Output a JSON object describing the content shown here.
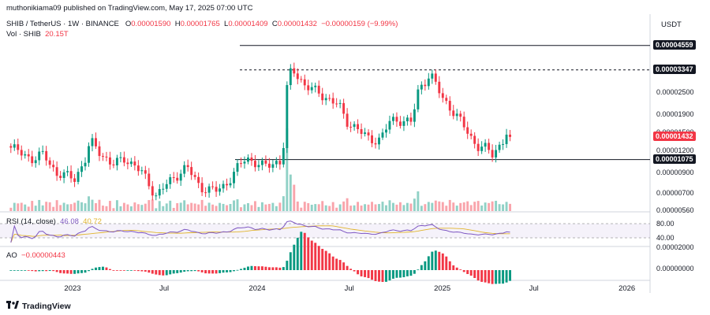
{
  "header": {
    "published": "muthonikiama09 published on TradingView.com, May 17, 2025 07:00 UTC",
    "symbol": "SHIB / TetherUS · 1W · BINANCE",
    "ohlc": {
      "o_label": "O",
      "o": "0.00001590",
      "h_label": "H",
      "h": "0.00001765",
      "l_label": "L",
      "l": "0.00001409",
      "c_label": "C",
      "c": "0.00001432",
      "change": "−0.00000159 (−9.99%)"
    },
    "volume_label": "Vol · SHIB",
    "volume_value": "20.15T",
    "currency": "USDT"
  },
  "rsi": {
    "label": "RSI (14, close)",
    "value1": "46.08",
    "value2": "40.72",
    "level_top": "80.00",
    "level_bottom": "40.00"
  },
  "ao": {
    "label": "AO",
    "value": "−0.00000443",
    "axis_top": "0.00002000",
    "axis_mid": "0.00000000"
  },
  "branding": {
    "logo_text": "TradingView"
  },
  "colors": {
    "up": "#089981",
    "down": "#f23645",
    "rsi": "#7e57c2",
    "rsi_ma": "#e0b42c"
  },
  "chart_data": {
    "type": "candlestick",
    "interval": "1W",
    "x_ticks": [
      "2023",
      "Jul",
      "2024",
      "Jul",
      "2025",
      "Jul",
      "2026"
    ],
    "y_ticks": [
      "0.00002500",
      "0.00001900",
      "0.00001500",
      "0.00001200",
      "0.00000900",
      "0.00000700",
      "0.00000560"
    ],
    "y_scale": "log",
    "price_tags": [
      {
        "value": "0.00004559",
        "style": "black"
      },
      {
        "value": "0.00003347",
        "style": "black"
      },
      {
        "value": "0.00001432",
        "style": "red"
      },
      {
        "value": "0.00001075",
        "style": "black"
      }
    ],
    "horizontal_levels": [
      {
        "value": 4.559e-05,
        "dashed": false
      },
      {
        "value": 3.347e-05,
        "dashed": true
      },
      {
        "value": 1.075e-05,
        "dashed": false
      }
    ],
    "anchors": [
      [
        "2022-09-01",
        1.25e-05
      ],
      [
        "2022-10-15",
        1.08e-05
      ],
      [
        "2022-11-05",
        1.15e-05
      ],
      [
        "2022-12-01",
        9e-06
      ],
      [
        "2023-01-05",
        8.5e-06
      ],
      [
        "2023-01-25",
        1.05e-05
      ],
      [
        "2023-02-05",
        1.35e-05
      ],
      [
        "2023-02-25",
        1.18e-05
      ],
      [
        "2023-03-20",
        1e-05
      ],
      [
        "2023-04-15",
        1.1e-05
      ],
      [
        "2023-05-20",
        9e-06
      ],
      [
        "2023-06-15",
        6.8e-06
      ],
      [
        "2023-07-05",
        7.8e-06
      ],
      [
        "2023-07-25",
        8.8e-06
      ],
      [
        "2023-08-15",
        9.8e-06
      ],
      [
        "2023-09-10",
        7.6e-06
      ],
      [
        "2023-10-10",
        7.2e-06
      ],
      [
        "2023-10-30",
        7.8e-06
      ],
      [
        "2023-11-25",
        9.8e-06
      ],
      [
        "2023-12-10",
        1.1e-05
      ],
      [
        "2024-01-15",
        9.8e-06
      ],
      [
        "2024-02-10",
        1.05e-05
      ],
      [
        "2024-02-20",
        1.05e-05
      ],
      [
        "2024-03-01",
        2.9e-05
      ],
      [
        "2024-03-10",
        3.4e-05
      ],
      [
        "2024-04-05",
        2.75e-05
      ],
      [
        "2024-05-01",
        2.5e-05
      ],
      [
        "2024-06-10",
        2.15e-05
      ],
      [
        "2024-06-25",
        1.75e-05
      ],
      [
        "2024-07-10",
        1.65e-05
      ],
      [
        "2024-08-10",
        1.38e-05
      ],
      [
        "2024-09-01",
        1.4e-05
      ],
      [
        "2024-09-20",
        1.75e-05
      ],
      [
        "2024-10-10",
        1.78e-05
      ],
      [
        "2024-11-01",
        1.72e-05
      ],
      [
        "2024-11-15",
        2.6e-05
      ],
      [
        "2024-12-08",
        3.2e-05
      ],
      [
        "2025-01-01",
        2.35e-05
      ],
      [
        "2025-01-25",
        1.95e-05
      ],
      [
        "2025-02-15",
        1.6e-05
      ],
      [
        "2025-03-10",
        1.28e-05
      ],
      [
        "2025-03-25",
        1.25e-05
      ],
      [
        "2025-04-10",
        1.15e-05
      ],
      [
        "2025-04-30",
        1.35e-05
      ],
      [
        "2025-05-12",
        1.59e-05
      ],
      [
        "2025-05-17",
        1.432e-05
      ]
    ]
  }
}
